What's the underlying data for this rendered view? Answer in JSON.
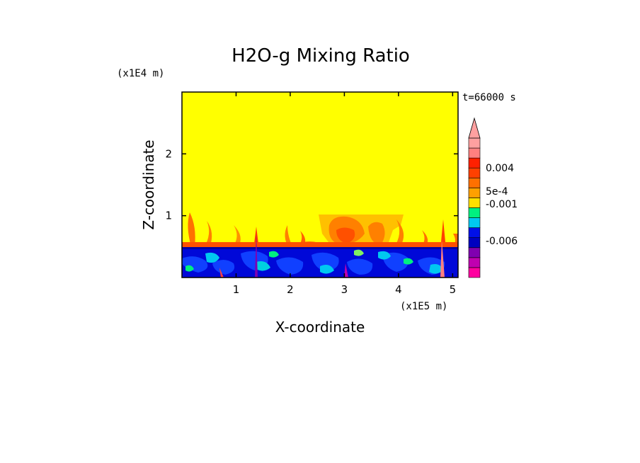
{
  "chart_data": {
    "type": "heatmap",
    "title": "H2O-g Mixing Ratio",
    "xlabel": "X-coordinate",
    "ylabel": "Z-coordinate",
    "x_unit": "(x1E5 m)",
    "y_unit": "(x1E4 m)",
    "time_label": "t=66000 s",
    "x_ticks": [
      "1",
      "2",
      "3",
      "4",
      "5"
    ],
    "y_ticks": [
      "1",
      "2"
    ],
    "xlim": [
      0,
      5.1
    ],
    "ylim": [
      0,
      3.0
    ],
    "grid": false,
    "colorbar": {
      "labels": [
        "0.004",
        "5e-4",
        "-0.001",
        "-0.006"
      ],
      "colors": [
        "#ff00a0",
        "#c000b0",
        "#8000b0",
        "#0000c0",
        "#0010e8",
        "#00c8f0",
        "#00f080",
        "#ffe000",
        "#ffa000",
        "#ff7000",
        "#ff4000",
        "#ff2000",
        "#ff8080",
        "#ffa0a0"
      ],
      "extend_top": true
    },
    "regions": [
      {
        "name": "Upper background",
        "z_range": [
          0.55,
          3.0
        ],
        "value_label": "5e-4",
        "color": "#ffff00"
      },
      {
        "name": "Lower mixed layer",
        "z_range": [
          0.0,
          0.5
        ],
        "value_label": "-0.001 to -0.006",
        "color": "#0000c0"
      }
    ],
    "features": [
      {
        "name": "Orange plume",
        "x": 3.05,
        "z_top": 1.0,
        "color": "#ff7000"
      },
      {
        "name": "Thin plumes",
        "x": [
          0.15,
          0.4,
          0.95,
          1.4,
          2.0,
          2.3,
          3.5,
          3.8,
          4.1,
          4.7
        ],
        "z_top": 1.0,
        "color": "#ff4000"
      }
    ]
  }
}
